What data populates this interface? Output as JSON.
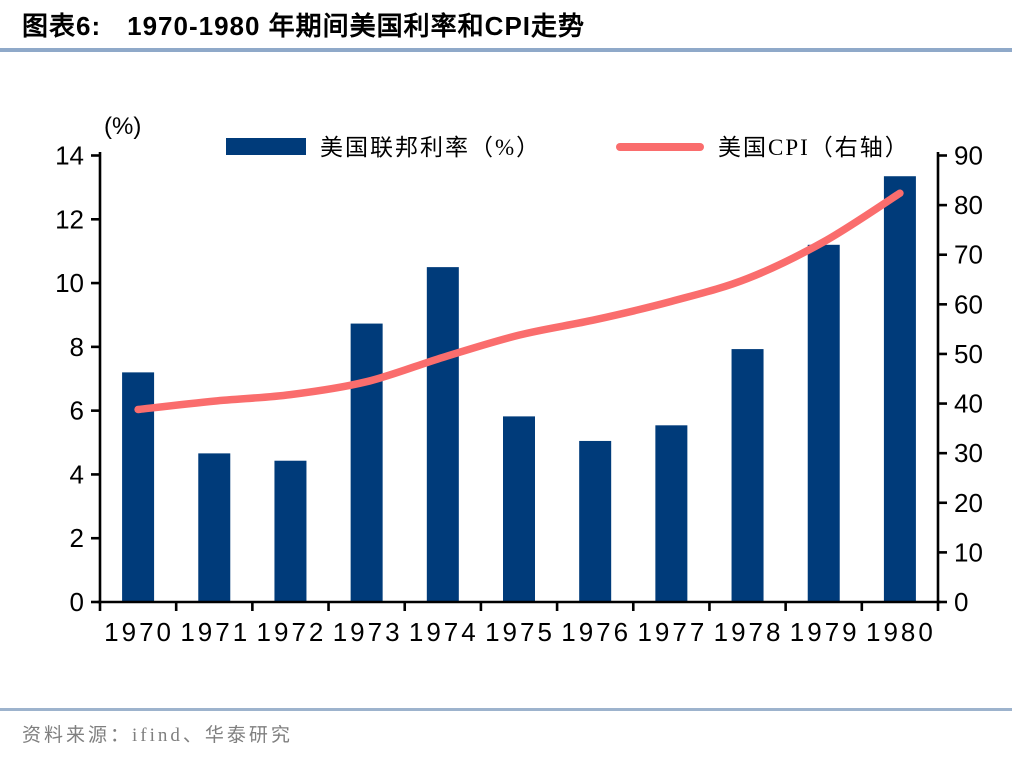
{
  "header": {
    "label": "图表6:",
    "title": "1970-1980 年期间美国利率和CPI走势"
  },
  "footer": {
    "source": "资料来源：ifind、华泰研究"
  },
  "chart_data": {
    "type": "bar",
    "subtype": "bar+line dual axis",
    "categories": [
      "1970",
      "1971",
      "1972",
      "1973",
      "1974",
      "1975",
      "1976",
      "1977",
      "1978",
      "1979",
      "1980"
    ],
    "series": [
      {
        "name": "美国联邦利率（%）",
        "type": "bar",
        "axis": "left",
        "color": "#003B7A",
        "values": [
          7.2,
          4.66,
          4.43,
          8.73,
          10.5,
          5.82,
          5.05,
          5.54,
          7.93,
          11.2,
          13.35
        ]
      },
      {
        "name": "美国CPI（右轴）",
        "type": "line",
        "axis": "right",
        "color": "#FA6D6D",
        "values": [
          38.8,
          40.5,
          41.8,
          44.4,
          49.3,
          53.8,
          56.9,
          60.6,
          65.2,
          72.6,
          82.4
        ]
      }
    ],
    "left_axis": {
      "label": "(%)",
      "min": 0,
      "max": 14,
      "step": 2
    },
    "right_axis": {
      "min": 0,
      "max": 90,
      "step": 10
    },
    "grid": false,
    "legend_position": "top"
  }
}
